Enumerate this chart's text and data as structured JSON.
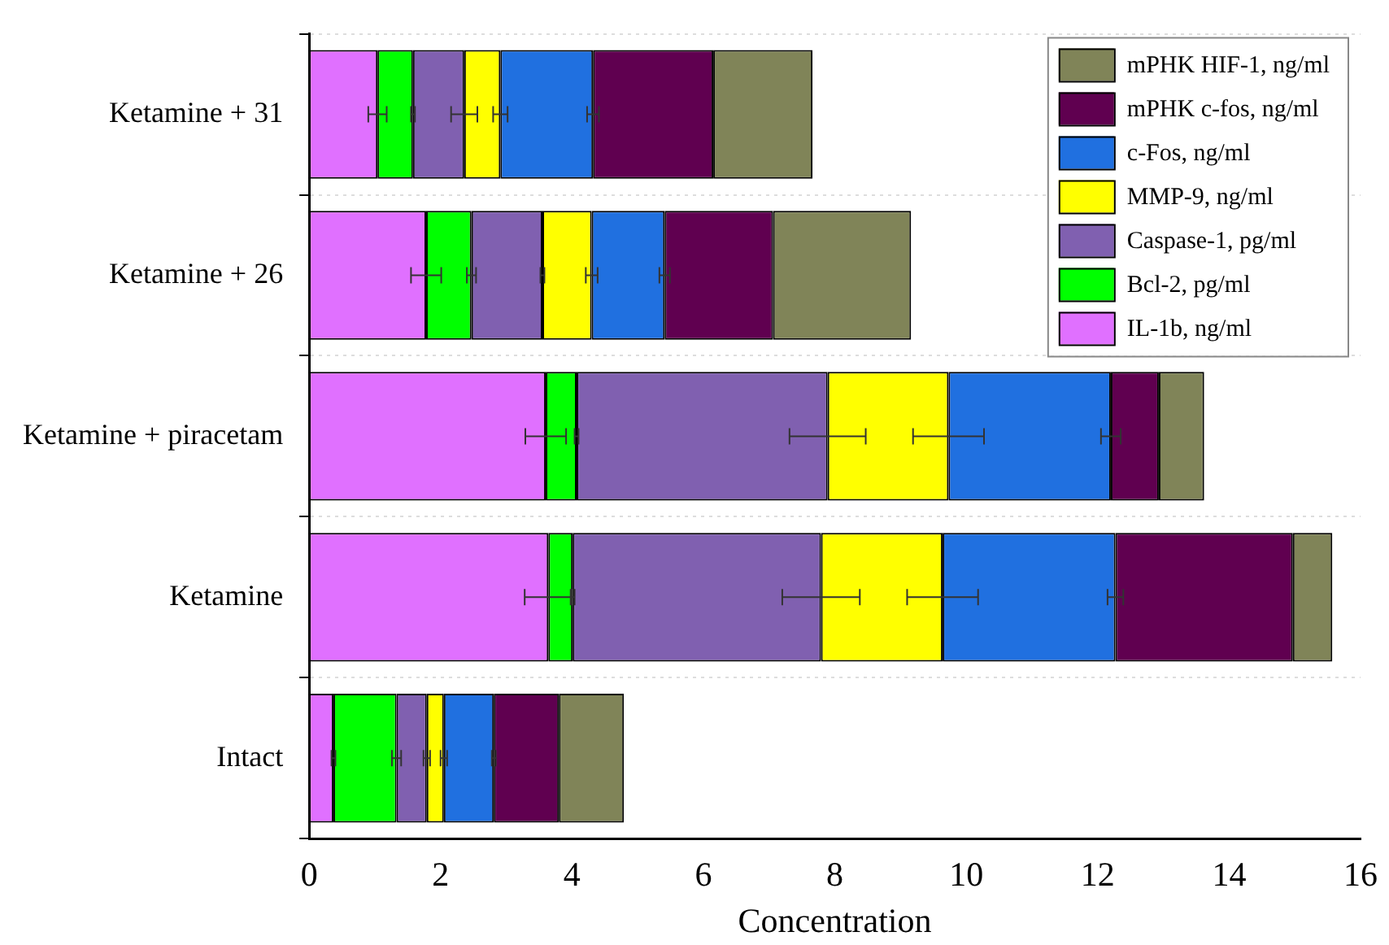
{
  "chart_data": {
    "type": "bar",
    "orientation": "horizontal",
    "stacked": true,
    "categories": [
      "Ketamine + 31",
      "Ketamine + 26",
      "Ketamine + piracetam",
      "Ketamine",
      "Intact"
    ],
    "series": [
      {
        "name": "IL-1b, ng/ml",
        "color": "#e070ff",
        "values": [
          1.04,
          1.78,
          3.6,
          3.64,
          0.37
        ],
        "errors": [
          0.14,
          0.23,
          0.31,
          0.36,
          0.03
        ]
      },
      {
        "name": "Bcl-2, pg/ml",
        "color": "#00ff00",
        "values": [
          0.54,
          0.69,
          0.47,
          0.37,
          0.96
        ],
        "errors": [
          0.03,
          0.07,
          0.03,
          0.03,
          0.07
        ]
      },
      {
        "name": "Caspase-1, pg/ml",
        "color": "#8060b0",
        "values": [
          0.78,
          1.08,
          3.82,
          3.78,
          0.46
        ],
        "errors": [
          0.2,
          0.03,
          0.58,
          0.59,
          0.05
        ]
      },
      {
        "name": "MMP-9, ng/ml",
        "color": "#ffff00",
        "values": [
          0.55,
          0.75,
          1.84,
          1.85,
          0.26
        ],
        "errors": [
          0.11,
          0.09,
          0.54,
          0.54,
          0.05
        ]
      },
      {
        "name": "c-Fos, ng/ml",
        "color": "#2070e0",
        "values": [
          1.41,
          1.11,
          2.47,
          2.63,
          0.76
        ],
        "errors": [
          0.09,
          0.08,
          0.15,
          0.12,
          0.03
        ]
      },
      {
        "name": "mPHK c-fos, ng/ml",
        "color": "#600050",
        "values": [
          1.83,
          1.65,
          0.73,
          2.7,
          0.99
        ]
      },
      {
        "name": "mPHK HIF-1, ng/ml",
        "color": "#808458",
        "values": [
          1.51,
          2.1,
          0.69,
          0.6,
          0.99
        ]
      }
    ],
    "xlabel": "Concentration",
    "xlim": [
      0,
      16
    ],
    "xticks": [
      0,
      2,
      4,
      6,
      8,
      10,
      12,
      14,
      16
    ],
    "grid": "y",
    "legend": "top right"
  }
}
